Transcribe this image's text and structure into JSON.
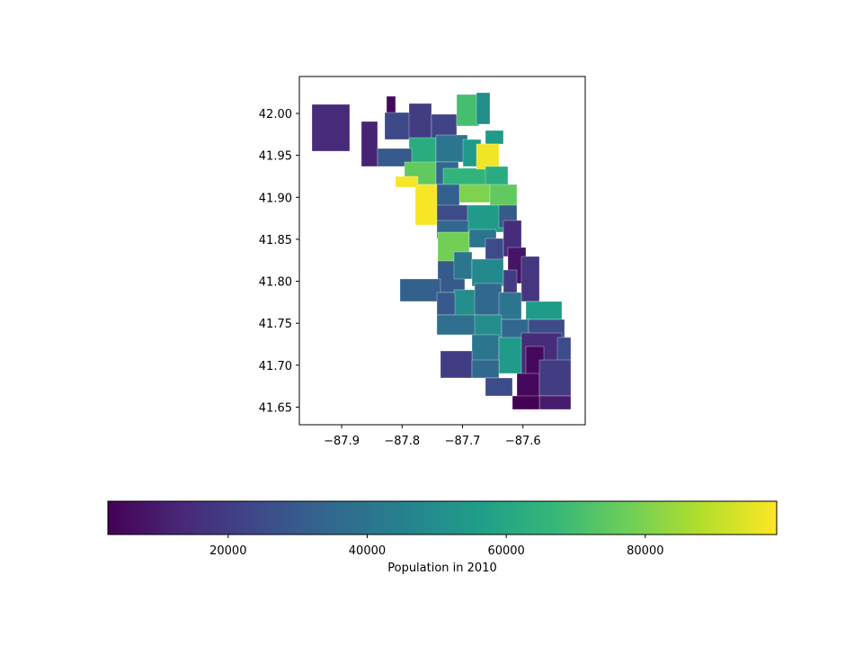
{
  "chart_data": {
    "type": "choropleth",
    "colormap": "viridis",
    "xlim": [
      -87.97,
      -87.497
    ],
    "ylim": [
      41.629,
      42.044
    ],
    "xticks": [
      {
        "value": -87.9,
        "label": "−87.9"
      },
      {
        "value": -87.8,
        "label": "−87.8"
      },
      {
        "value": -87.7,
        "label": "−87.7"
      },
      {
        "value": -87.6,
        "label": "−87.6"
      }
    ],
    "yticks": [
      {
        "value": 41.65,
        "label": "41.65"
      },
      {
        "value": 41.7,
        "label": "41.70"
      },
      {
        "value": 41.75,
        "label": "41.75"
      },
      {
        "value": 41.8,
        "label": "41.80"
      },
      {
        "value": 41.85,
        "label": "41.85"
      },
      {
        "value": 41.9,
        "label": "41.90"
      },
      {
        "value": 41.95,
        "label": "41.95"
      },
      {
        "value": 42.0,
        "label": "42.00"
      }
    ],
    "colorbar_label": "Population in 2010",
    "clim": [
      2700,
      98900
    ],
    "colorbar_ticks": [
      20000,
      40000,
      60000,
      80000
    ],
    "values": [
      14000,
      12000,
      5000,
      24000,
      20000,
      22000,
      70000,
      50000,
      55000,
      62000,
      40000,
      55000,
      30000,
      75000,
      35000,
      65000,
      97000,
      62000,
      98000,
      98000,
      80000,
      75000,
      32000,
      25000,
      55000,
      30000,
      35000,
      78000,
      40000,
      25000,
      15000,
      8000,
      18000,
      30000,
      40000,
      48000,
      20000,
      32000,
      50000,
      35000,
      40000,
      55000,
      30000,
      38000,
      50000,
      35000,
      25000,
      40000,
      55000,
      15000,
      25000,
      20000,
      35000,
      25000,
      5000,
      5000,
      20000,
      10000,
      3000
    ]
  }
}
